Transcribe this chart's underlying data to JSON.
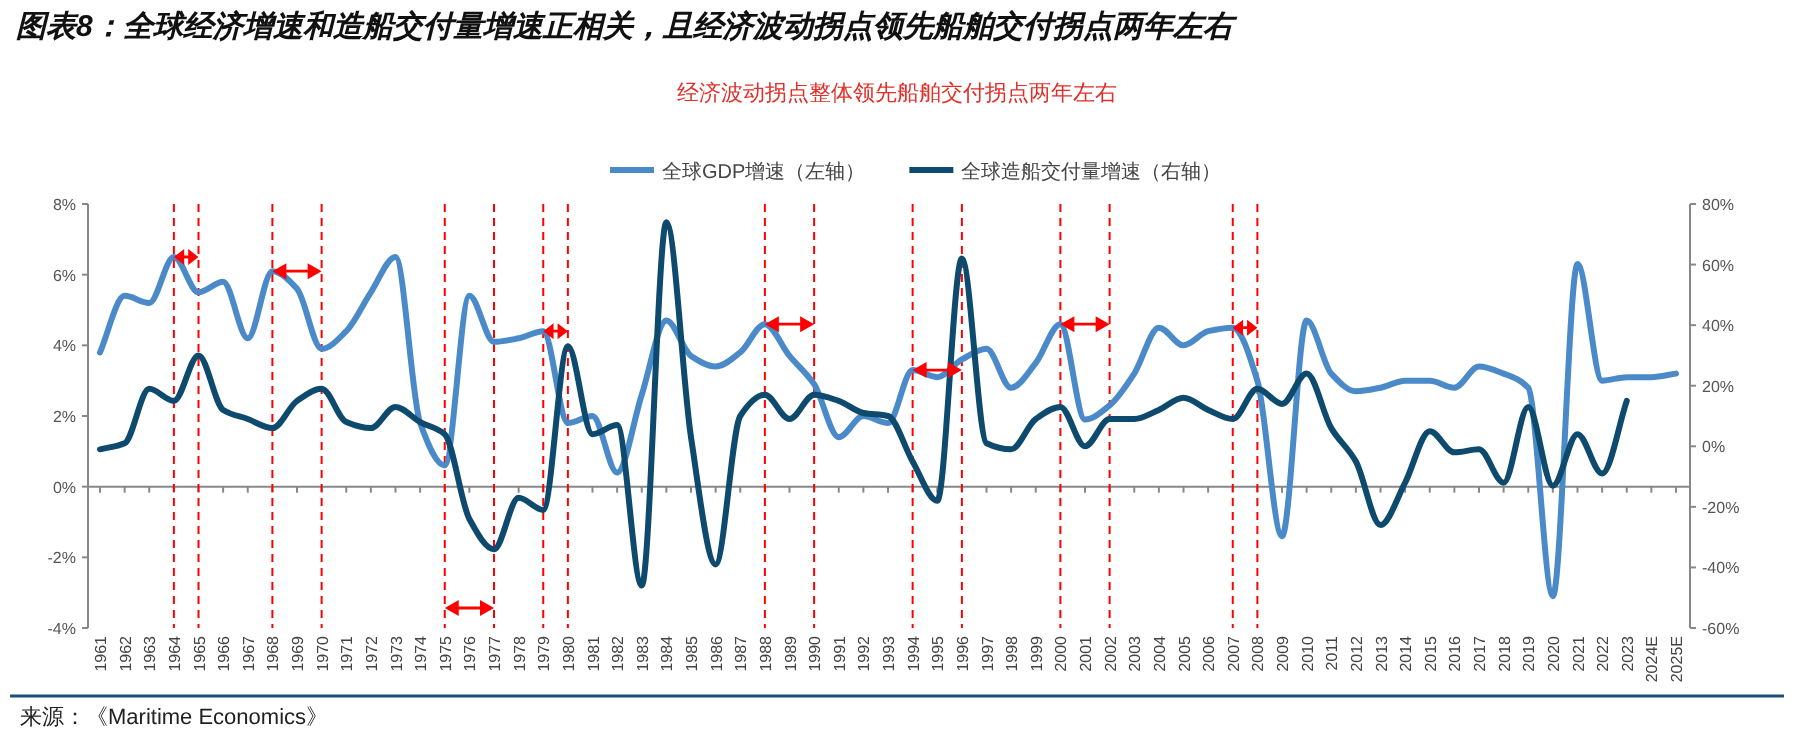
{
  "chart_data": {
    "type": "line",
    "title": "图表8：全球经济增速和造船交付量增速正相关，且经济波动拐点领先船舶交付拐点两年左右",
    "subtitle": "经济波动拐点整体领先船舶交付拐点两年左右",
    "categories": [
      "1961",
      "1962",
      "1963",
      "1964",
      "1965",
      "1966",
      "1967",
      "1968",
      "1969",
      "1970",
      "1971",
      "1972",
      "1973",
      "1974",
      "1975",
      "1976",
      "1977",
      "1978",
      "1979",
      "1980",
      "1981",
      "1982",
      "1983",
      "1984",
      "1985",
      "1986",
      "1987",
      "1988",
      "1989",
      "1990",
      "1991",
      "1992",
      "1993",
      "1994",
      "1995",
      "1996",
      "1997",
      "1998",
      "1999",
      "2000",
      "2001",
      "2002",
      "2003",
      "2004",
      "2005",
      "2006",
      "2007",
      "2008",
      "2009",
      "2010",
      "2011",
      "2012",
      "2013",
      "2014",
      "2015",
      "2016",
      "2017",
      "2018",
      "2019",
      "2020",
      "2021",
      "2022",
      "2023",
      "2024E",
      "2025E"
    ],
    "series": [
      {
        "name": "全球GDP增速（左轴）",
        "color": "#4a8ac9",
        "values": [
          3.8,
          5.4,
          5.2,
          6.5,
          5.5,
          5.8,
          4.2,
          6.1,
          5.6,
          3.9,
          4.4,
          5.5,
          6.5,
          1.8,
          0.6,
          5.4,
          4.1,
          4.2,
          4.4,
          1.8,
          2.0,
          0.4,
          2.6,
          4.7,
          3.7,
          3.4,
          3.8,
          4.6,
          3.7,
          2.9,
          1.4,
          2.0,
          1.8,
          3.3,
          3.1,
          3.6,
          3.9,
          2.8,
          3.5,
          4.6,
          1.9,
          2.3,
          3.2,
          4.5,
          4.0,
          4.4,
          4.5,
          3.0,
          -1.4,
          4.7,
          3.2,
          2.7,
          2.8,
          3.0,
          3.0,
          2.8,
          3.4,
          3.2,
          2.8,
          -3.1,
          6.3,
          3.0,
          3.1,
          3.1,
          3.2
        ]
      },
      {
        "name": "全球造船交付量增速（右轴）",
        "color": "#0e4a6e",
        "axis": "y2",
        "values": [
          -1,
          1,
          19,
          15,
          30,
          12,
          9,
          6,
          15,
          19,
          8,
          6,
          13,
          8,
          4,
          -24,
          -34,
          -17,
          -21,
          33,
          4,
          7,
          -46,
          74,
          3,
          -39,
          10,
          17,
          9,
          17,
          15,
          11,
          10,
          -5,
          -18,
          62,
          1,
          -1,
          9,
          13,
          0,
          9,
          9,
          12,
          16,
          12,
          9,
          19,
          14,
          24,
          6,
          -5,
          -26,
          -12,
          5,
          -2,
          -1,
          -12,
          13,
          -13,
          4,
          -9,
          15,
          null,
          null
        ]
      }
    ],
    "ylim": [
      -4,
      8
    ],
    "yticks": [
      {
        "value": -4,
        "label": "-4%"
      },
      {
        "value": -2,
        "label": "-2%"
      },
      {
        "value": 0,
        "label": "0%"
      },
      {
        "value": 2,
        "label": "2%"
      },
      {
        "value": 4,
        "label": "4%"
      },
      {
        "value": 6,
        "label": "6%"
      },
      {
        "value": 8,
        "label": "8%"
      }
    ],
    "y2lim": [
      -60,
      80
    ],
    "y2ticks": [
      {
        "value": -60,
        "label": "-60%"
      },
      {
        "value": -40,
        "label": "-40%"
      },
      {
        "value": -20,
        "label": "-20%"
      },
      {
        "value": 0,
        "label": "0%"
      },
      {
        "value": 20,
        "label": "20%"
      },
      {
        "value": 40,
        "label": "40%"
      },
      {
        "value": 60,
        "label": "60%"
      },
      {
        "value": 80,
        "label": "80%"
      }
    ],
    "legend": "top",
    "ref_lines": [
      {
        "axis": "x",
        "value": "1964",
        "color": "#ff0000",
        "line_style": "dashed"
      },
      {
        "axis": "x",
        "value": "1965",
        "color": "#ff0000",
        "line_style": "dashed"
      },
      {
        "axis": "x",
        "value": "1968",
        "color": "#ff0000",
        "line_style": "dashed"
      },
      {
        "axis": "x",
        "value": "1970",
        "color": "#ff0000",
        "line_style": "dashed"
      },
      {
        "axis": "x",
        "value": "1975",
        "color": "#ff0000",
        "line_style": "dashed"
      },
      {
        "axis": "x",
        "value": "1977",
        "color": "#ff0000",
        "line_style": "dashed"
      },
      {
        "axis": "x",
        "value": "1979",
        "color": "#ff0000",
        "line_style": "dashed"
      },
      {
        "axis": "x",
        "value": "1980",
        "color": "#ff0000",
        "line_style": "dashed"
      },
      {
        "axis": "x",
        "value": "1988",
        "color": "#ff0000",
        "line_style": "dashed"
      },
      {
        "axis": "x",
        "value": "1990",
        "color": "#ff0000",
        "line_style": "dashed"
      },
      {
        "axis": "x",
        "value": "1994",
        "color": "#ff0000",
        "line_style": "dashed"
      },
      {
        "axis": "x",
        "value": "1996",
        "color": "#ff0000",
        "line_style": "dashed"
      },
      {
        "axis": "x",
        "value": "2000",
        "color": "#ff0000",
        "line_style": "dashed"
      },
      {
        "axis": "x",
        "value": "2002",
        "color": "#ff0000",
        "line_style": "dashed"
      },
      {
        "axis": "x",
        "value": "2007",
        "color": "#ff0000",
        "line_style": "dashed"
      },
      {
        "axis": "x",
        "value": "2008",
        "color": "#ff0000",
        "line_style": "dashed"
      }
    ],
    "annotations": [
      "来源：《Maritime Economics》"
    ]
  }
}
